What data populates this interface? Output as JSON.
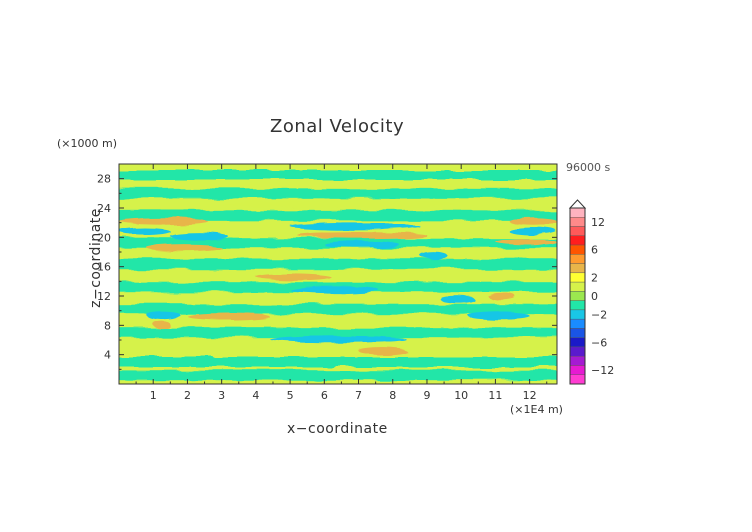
{
  "chart_data": {
    "type": "heatmap",
    "title": "Zonal Velocity",
    "xlabel": "x−coordinate",
    "ylabel": "z−coordinate",
    "x_unit_label": "(×1E4 m)",
    "y_unit_label": "(×1000 m)",
    "timestamp": "96000 s",
    "x_ticks": [
      "1",
      "2",
      "3",
      "4",
      "5",
      "6",
      "7",
      "8",
      "9",
      "10",
      "11",
      "12"
    ],
    "y_ticks": [
      "4",
      "8",
      "12",
      "16",
      "20",
      "24",
      "28"
    ],
    "xlim": [
      0,
      12.8
    ],
    "ylim": [
      0,
      30
    ],
    "colorbar": {
      "tick_labels": [
        "12",
        "6",
        "2",
        "0",
        "−2",
        "−6",
        "−12"
      ],
      "levels": [
        14,
        12,
        10,
        8,
        6,
        4,
        3,
        2,
        1,
        0,
        -1,
        -2,
        -3,
        -4,
        -6,
        -8,
        -10,
        -12,
        -14
      ],
      "colors": [
        "#ffb3bf",
        "#ff8a8a",
        "#ff5a5a",
        "#ff1e1e",
        "#ff5500",
        "#ff9a2e",
        "#e8b54a",
        "#ffff33",
        "#d6f24a",
        "#9be84f",
        "#22e6a8",
        "#19c6e6",
        "#1a8cff",
        "#1a55e6",
        "#1a1ac8",
        "#5a1acd",
        "#a51ad2",
        "#e61ad2",
        "#ff3cd2"
      ]
    },
    "bands": [
      {
        "z": 28.5,
        "x0": 0.0,
        "x1": 12.8,
        "level": -1,
        "note": "top"
      },
      {
        "z": 24.5,
        "x0": 3.0,
        "x1": 10.0,
        "level": 1
      },
      {
        "z": 22.2,
        "x0": 0.0,
        "x1": 2.6,
        "level": 3
      },
      {
        "z": 22.2,
        "x0": 11.4,
        "x1": 12.8,
        "level": 3
      },
      {
        "z": 21.5,
        "x0": 5.0,
        "x1": 8.8,
        "level": -2
      },
      {
        "z": 20.8,
        "x0": 0.0,
        "x1": 1.5,
        "level": -2
      },
      {
        "z": 20.8,
        "x0": 11.4,
        "x1": 12.8,
        "level": -2
      },
      {
        "z": 20.1,
        "x0": 1.5,
        "x1": 3.2,
        "level": -2
      },
      {
        "z": 20.3,
        "x0": 5.2,
        "x1": 9.0,
        "level": 3
      },
      {
        "z": 19.0,
        "x0": 6.0,
        "x1": 8.2,
        "level": -2
      },
      {
        "z": 18.6,
        "x0": 0.8,
        "x1": 3.0,
        "level": 3
      },
      {
        "z": 19.4,
        "x0": 11.0,
        "x1": 12.8,
        "level": 3
      },
      {
        "z": 17.5,
        "x0": 8.8,
        "x1": 9.6,
        "level": -2
      },
      {
        "z": 14.6,
        "x0": 4.0,
        "x1": 6.2,
        "level": 3
      },
      {
        "z": 12.8,
        "x0": 5.0,
        "x1": 7.6,
        "level": -2
      },
      {
        "z": 11.5,
        "x0": 9.4,
        "x1": 10.4,
        "level": -2
      },
      {
        "z": 11.9,
        "x0": 10.8,
        "x1": 11.6,
        "level": 3
      },
      {
        "z": 9.4,
        "x0": 0.8,
        "x1": 1.8,
        "level": -2
      },
      {
        "z": 9.3,
        "x0": 10.2,
        "x1": 12.0,
        "level": -2
      },
      {
        "z": 9.2,
        "x0": 2.0,
        "x1": 4.4,
        "level": 3
      },
      {
        "z": 8.1,
        "x0": 1.0,
        "x1": 1.5,
        "level": 3
      },
      {
        "z": 6.1,
        "x0": 4.4,
        "x1": 8.4,
        "level": -2
      },
      {
        "z": 4.5,
        "x0": 7.0,
        "x1": 8.4,
        "level": 3
      }
    ]
  }
}
